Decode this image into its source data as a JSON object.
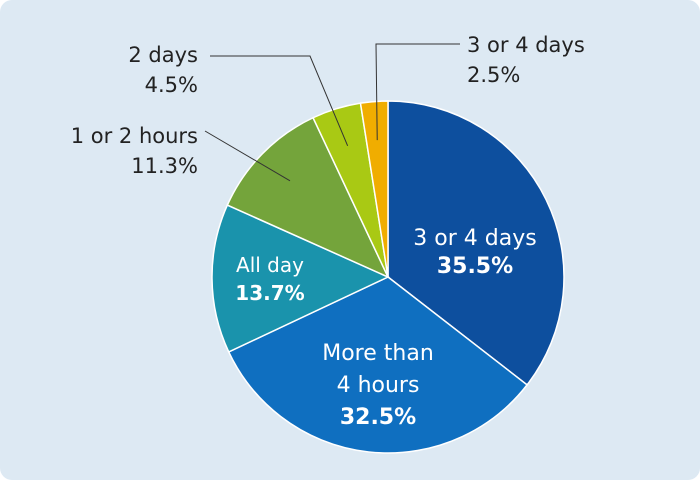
{
  "chart_data": {
    "type": "pie",
    "slices": [
      {
        "label_lines": [
          "3 or 4 days"
        ],
        "value_text": "35.5%",
        "value": 35.5,
        "color": "#0d4f9e",
        "label_position": "inside"
      },
      {
        "label_lines": [
          "More than",
          "4 hours"
        ],
        "value_text": "32.5%",
        "value": 32.5,
        "color": "#0f6fc0",
        "label_position": "inside"
      },
      {
        "label_lines": [
          "All day"
        ],
        "value_text": "13.7%",
        "value": 13.7,
        "color": "#1a93ac",
        "label_position": "inside"
      },
      {
        "label_lines": [
          "1 or 2 hours"
        ],
        "value_text": "11.3%",
        "value": 11.3,
        "color": "#74a43b",
        "label_position": "outside"
      },
      {
        "label_lines": [
          "2 days"
        ],
        "value_text": "4.5%",
        "value": 4.5,
        "color": "#a9c914",
        "label_position": "outside"
      },
      {
        "label_lines": [
          "3 or 4 days"
        ],
        "value_text": "2.5%",
        "value": 2.5,
        "color": "#f0ad00",
        "label_position": "outside"
      }
    ]
  }
}
